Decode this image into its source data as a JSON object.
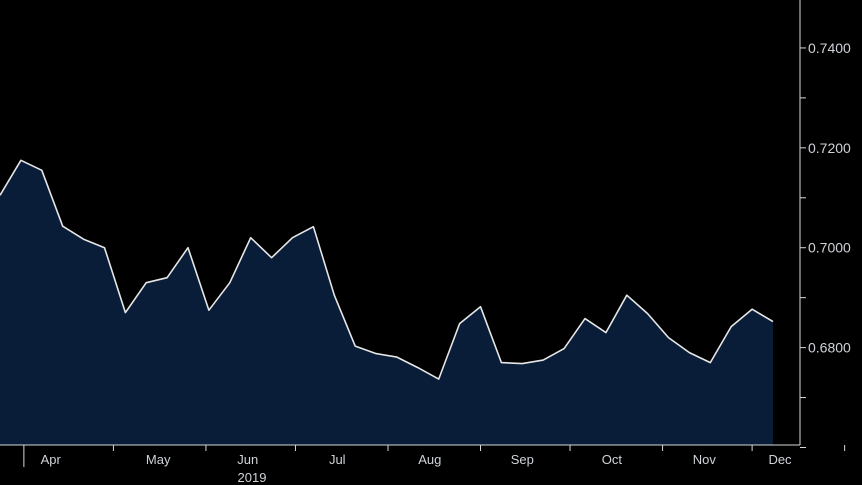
{
  "chart_data": {
    "type": "area",
    "title": "",
    "xlabel": "",
    "ylabel": "",
    "year_label": "2019",
    "x_tick_labels": [
      "Apr",
      "May",
      "Jun",
      "Jul",
      "Aug",
      "Sep",
      "Oct",
      "Nov",
      "Dec"
    ],
    "y_tick_labels": [
      "0.6800",
      "0.7000",
      "0.7200",
      "0.7400"
    ],
    "y_ticks": [
      0.68,
      0.7,
      0.72,
      0.74
    ],
    "ylim": [
      0.6605,
      0.7496
    ],
    "grid": false,
    "legend": "none",
    "colors": {
      "background": "#000000",
      "fill": "#0a1d38",
      "line": "#e6e6e6",
      "axis": "#d8d8d8"
    },
    "series": [
      {
        "x": [
          "2019-03-24",
          "2019-03-31",
          "2019-04-07",
          "2019-04-14",
          "2019-04-21",
          "2019-04-28",
          "2019-05-05",
          "2019-05-12",
          "2019-05-19",
          "2019-05-26",
          "2019-06-02",
          "2019-06-09",
          "2019-06-16",
          "2019-06-23",
          "2019-06-30",
          "2019-07-07",
          "2019-07-14",
          "2019-07-21",
          "2019-07-28",
          "2019-08-04",
          "2019-08-11",
          "2019-08-18",
          "2019-08-25",
          "2019-09-01",
          "2019-09-08",
          "2019-09-15",
          "2019-09-22",
          "2019-09-29",
          "2019-10-06",
          "2019-10-13",
          "2019-10-20",
          "2019-10-27",
          "2019-11-03",
          "2019-11-10",
          "2019-11-17",
          "2019-11-24",
          "2019-12-01",
          "2019-12-08"
        ],
        "values": [
          0.7105,
          0.7175,
          0.7155,
          0.7043,
          0.7017,
          0.7,
          0.687,
          0.693,
          0.694,
          0.7,
          0.6875,
          0.693,
          0.702,
          0.698,
          0.702,
          0.7042,
          0.6905,
          0.6803,
          0.6788,
          0.6781,
          0.676,
          0.6737,
          0.6848,
          0.6882,
          0.677,
          0.6768,
          0.6775,
          0.6798,
          0.6858,
          0.683,
          0.6905,
          0.6868,
          0.682,
          0.679,
          0.677,
          0.6842,
          0.6877,
          0.6852
        ]
      }
    ]
  }
}
